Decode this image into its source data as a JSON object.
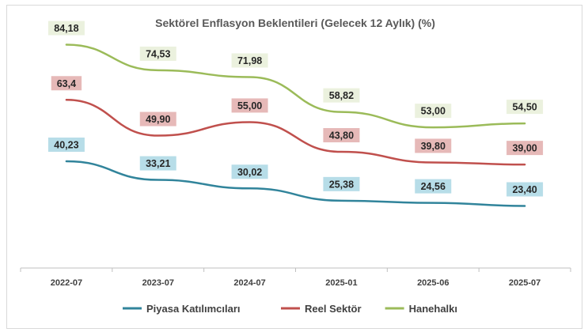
{
  "chart_data": {
    "type": "line",
    "title": "Sektörel Enflasyon Beklentileri (Gelecek 12 Aylık) (%)",
    "categories": [
      "2022-07",
      "2023-07",
      "2024-07",
      "2025-01",
      "2025-06",
      "2025-07"
    ],
    "ylim": [
      0,
      90
    ],
    "grid": false,
    "legend_position": "bottom",
    "series": [
      {
        "name": "Piyasa Katılımcıları",
        "color": "#31849b",
        "label_bg": "#b7dde8",
        "values": [
          40.23,
          33.21,
          30.02,
          25.38,
          24.56,
          23.4
        ],
        "labels": [
          "40,23",
          "33,21",
          "30,02",
          "25,38",
          "24,56",
          "23,40"
        ]
      },
      {
        "name": "Reel Sektör",
        "color": "#c0504d",
        "label_bg": "#e6b9b8",
        "values": [
          63.4,
          49.9,
          55.0,
          43.8,
          39.8,
          39.0
        ],
        "labels": [
          "63,4",
          "49,90",
          "55,00",
          "43,80",
          "39,80",
          "39,00"
        ]
      },
      {
        "name": "Hanehalkı",
        "color": "#9bbb59",
        "label_bg": "#ebf1de",
        "values": [
          84.18,
          74.53,
          71.98,
          58.82,
          53.0,
          54.5
        ],
        "labels": [
          "84,18",
          "74,53",
          "71,98",
          "58,82",
          "53,00",
          "54,50"
        ]
      }
    ]
  }
}
